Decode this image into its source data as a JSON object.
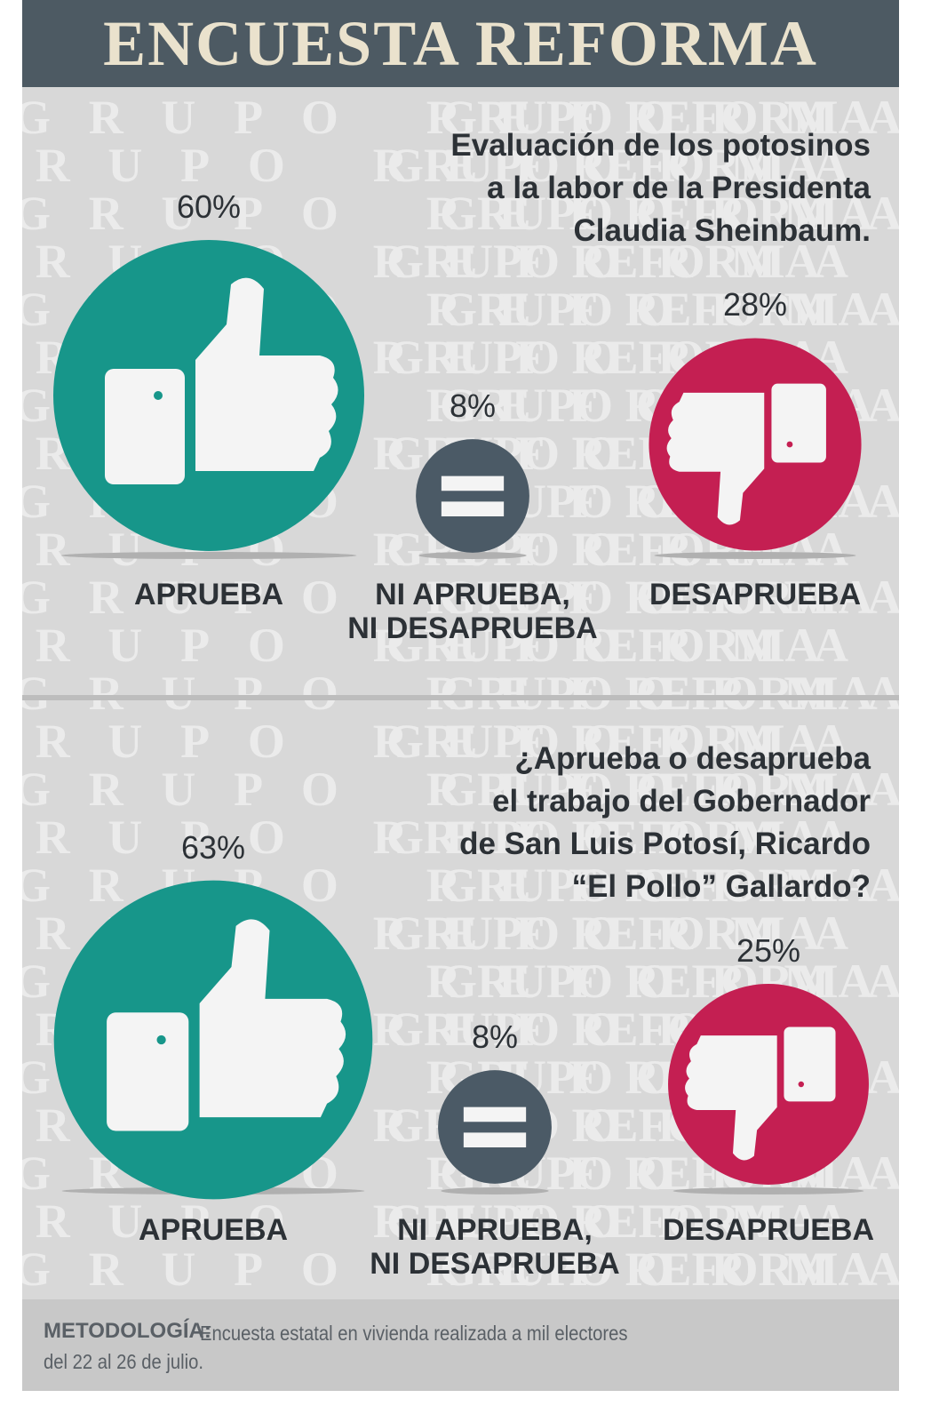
{
  "header": {
    "title": "ENCUESTA REFORMA"
  },
  "watermark": "GRUPO REFORMA",
  "chart_data": [
    {
      "type": "bubble",
      "title": "Evaluación de los potosinos\na la labor de la Presidenta\nClaudia Sheinbaum.",
      "categories": [
        "APRUEBA",
        "NI APRUEBA,\nNI DESAPRUEBA",
        "DESAPRUEBA"
      ],
      "values": [
        60,
        8,
        28
      ],
      "value_labels": [
        "60%",
        "8%",
        "28%"
      ],
      "colors": [
        "#17968a",
        "#4b5a66",
        "#c41f52"
      ]
    },
    {
      "type": "bubble",
      "title": "¿Aprueba o desaprueba\nel trabajo del Gobernador\nde San Luis Potosí, Ricardo\n“El Pollo” Gallardo?",
      "categories": [
        "APRUEBA",
        "NI APRUEBA,\nNI DESAPRUEBA",
        "DESAPRUEBA"
      ],
      "values": [
        63,
        8,
        25
      ],
      "value_labels": [
        "63%",
        "8%",
        "25%"
      ],
      "colors": [
        "#17968a",
        "#4b5a66",
        "#c41f52"
      ]
    }
  ],
  "methodology": {
    "label": "METODOLOGÍA:",
    "text": "Encuesta estatal en vivienda realizada a mil electores\ndel 22 al 26 de julio."
  }
}
